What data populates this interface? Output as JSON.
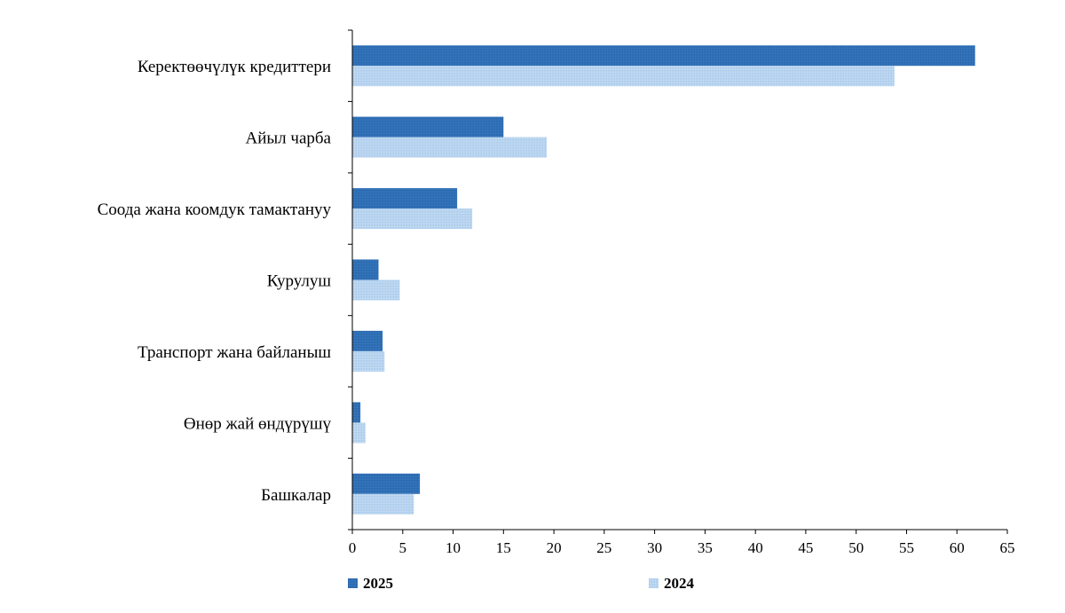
{
  "chart_data": {
    "type": "bar",
    "orientation": "horizontal",
    "categories": [
      "Керектөөчүлүк кредиттери",
      "Айыл чарба",
      "Соода жана коомдук тамактануу",
      "Курулуш",
      "Транспорт жана байланыш",
      "Өнөр жай өндүрүшү",
      "Башкалар"
    ],
    "series": [
      {
        "name": "2025",
        "color": "#2f6fb5",
        "values": [
          61.8,
          15.0,
          10.4,
          2.6,
          3.0,
          0.8,
          6.7
        ]
      },
      {
        "name": "2024",
        "color": "#b7d3ef",
        "values": [
          53.8,
          19.3,
          11.9,
          4.7,
          3.2,
          1.3,
          6.1
        ]
      }
    ],
    "xlim": [
      0,
      65
    ],
    "xticks": [
      "0",
      "5",
      "10",
      "15",
      "20",
      "25",
      "30",
      "35",
      "40",
      "45",
      "50",
      "55",
      "60",
      "65"
    ],
    "grid": false,
    "legend_position": "bottom"
  }
}
